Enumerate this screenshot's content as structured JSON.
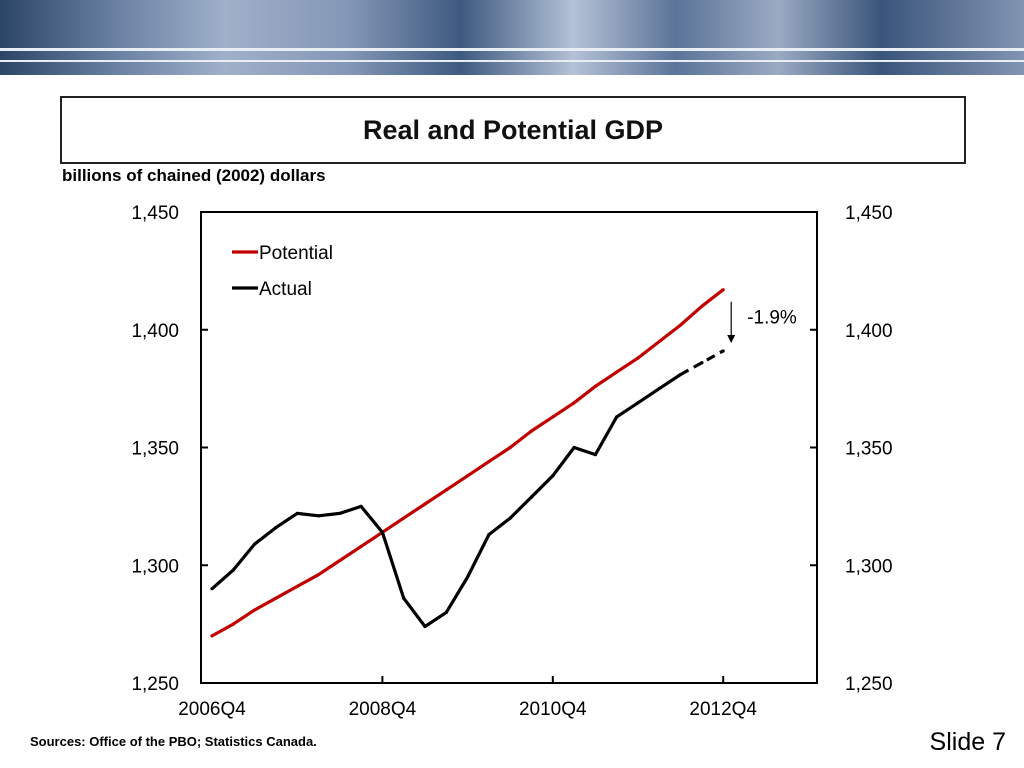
{
  "slide": {
    "title": "Real and Potential GDP",
    "units": "billions of chained (2002) dollars",
    "sources": "Sources:  Office of the PBO; Statistics Canada.",
    "slide_number": "Slide 7"
  },
  "colors": {
    "potential": "#c00000",
    "actual": "#000000",
    "banner": "#3a557b"
  },
  "chart_data": {
    "type": "line",
    "title": "Real and Potential GDP",
    "ylabel": "billions of chained (2002) dollars",
    "ylim": [
      1250,
      1450
    ],
    "y_ticks": [
      1250,
      1300,
      1350,
      1400,
      1450
    ],
    "y_tick_labels": [
      "1,250",
      "1,300",
      "1,350",
      "1,400",
      "1,450"
    ],
    "secondary_y_axis": true,
    "x": [
      "2006Q4",
      "2007Q1",
      "2007Q2",
      "2007Q3",
      "2007Q4",
      "2008Q1",
      "2008Q2",
      "2008Q3",
      "2008Q4",
      "2009Q1",
      "2009Q2",
      "2009Q3",
      "2009Q4",
      "2010Q1",
      "2010Q2",
      "2010Q3",
      "2010Q4",
      "2011Q1",
      "2011Q2",
      "2011Q3",
      "2011Q4",
      "2012Q1",
      "2012Q2",
      "2012Q3",
      "2012Q4"
    ],
    "x_tick_labels": [
      "2006Q4",
      "2008Q4",
      "2010Q4",
      "2012Q4"
    ],
    "legend": "top-left",
    "grid": false,
    "series": [
      {
        "name": "Potential",
        "color": "#c00000",
        "style": "solid",
        "values": [
          1270,
          1275,
          1281,
          1286,
          1291,
          1296,
          1302,
          1308,
          1314,
          1320,
          1326,
          1332,
          1338,
          1344,
          1350,
          1357,
          1363,
          1369,
          1376,
          1382,
          1388,
          1395,
          1402,
          1410,
          1417
        ]
      },
      {
        "name": "Actual",
        "color": "#000000",
        "style": "solid",
        "dashed_from": "2012Q2",
        "values": [
          1290,
          1298,
          1309,
          1316,
          1322,
          1321,
          1322,
          1325,
          1314,
          1286,
          1274,
          1280,
          1295,
          1313,
          1320,
          1329,
          1338,
          1350,
          1347,
          1363,
          1369,
          1375,
          1381,
          1386,
          1391
        ]
      }
    ],
    "annotations": [
      {
        "text": "-1.9%",
        "at": "2012Q4",
        "from_value": 1417,
        "to_value": 1391
      }
    ]
  }
}
